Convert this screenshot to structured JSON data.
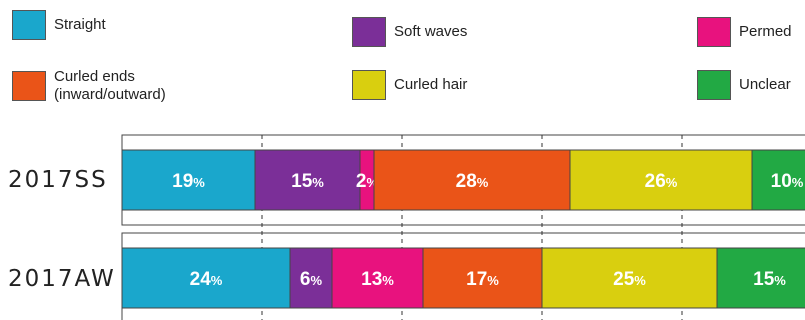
{
  "chart_data": {
    "type": "bar",
    "orientation": "horizontal",
    "stacked": true,
    "unit": "%",
    "categories": [
      "2017SS",
      "2017AW"
    ],
    "series": [
      {
        "name": "Straight",
        "color": "#1aa7cc",
        "values": [
          19,
          24
        ]
      },
      {
        "name": "Soft waves",
        "color": "#7b2f98",
        "values": [
          15,
          6
        ]
      },
      {
        "name": "Permed",
        "color": "#e8127e",
        "values": [
          2,
          13
        ]
      },
      {
        "name": "Curled ends\n(inward/outward)",
        "color": "#ea5418",
        "values": [
          28,
          17
        ]
      },
      {
        "name": "Curled hair",
        "color": "#d9cf0f",
        "values": [
          26,
          25
        ]
      },
      {
        "name": "Unclear",
        "color": "#22a944",
        "values": [
          10,
          15
        ]
      }
    ],
    "title": "",
    "xlabel": "",
    "ylabel": "",
    "grid": true,
    "legend_position": "top"
  }
}
